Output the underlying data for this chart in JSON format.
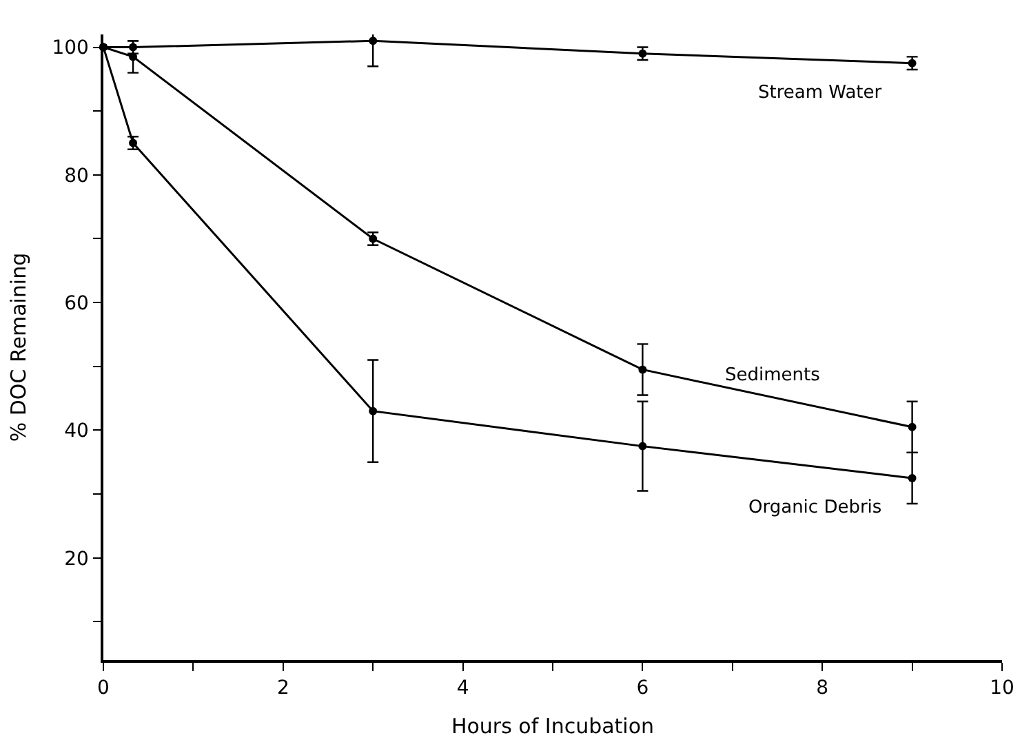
{
  "chart_data": {
    "type": "line",
    "xlabel": "Hours of Incubation",
    "ylabel": "% DOC Remaining",
    "xlim": [
      0,
      10
    ],
    "ylim": [
      4,
      102
    ],
    "xticks": [
      0,
      {
        "value": 1,
        "label": null
      },
      2,
      {
        "value": 3,
        "label": null
      },
      4,
      {
        "value": 5,
        "label": null
      },
      6,
      {
        "value": 7,
        "label": null
      },
      8,
      {
        "value": 9,
        "label": null
      },
      10
    ],
    "yticks": [
      {
        "value": 10,
        "label": null
      },
      20,
      {
        "value": 30,
        "label": null
      },
      40,
      {
        "value": 50,
        "label": null
      },
      60,
      {
        "value": 70,
        "label": null
      },
      80,
      {
        "value": 90,
        "label": null
      },
      100
    ],
    "x": [
      0,
      0.33,
      3,
      6,
      9
    ],
    "series": [
      {
        "name": "Stream Water",
        "color": "#000000",
        "values": [
          100,
          100,
          101,
          99,
          97.5
        ],
        "errors": [
          null,
          1,
          4,
          1,
          1
        ]
      },
      {
        "name": "Sediments",
        "color": "#000000",
        "values": [
          100,
          98.5,
          70,
          49.5,
          40.5
        ],
        "errors": [
          null,
          2.5,
          1,
          4,
          4
        ]
      },
      {
        "name": "Organic Debris",
        "color": "#000000",
        "values": [
          100,
          85,
          43,
          37.5,
          32.5
        ],
        "errors": [
          null,
          1,
          8,
          7,
          4
        ]
      }
    ],
    "marker": "circle",
    "line_style": "solid",
    "legend": false
  }
}
